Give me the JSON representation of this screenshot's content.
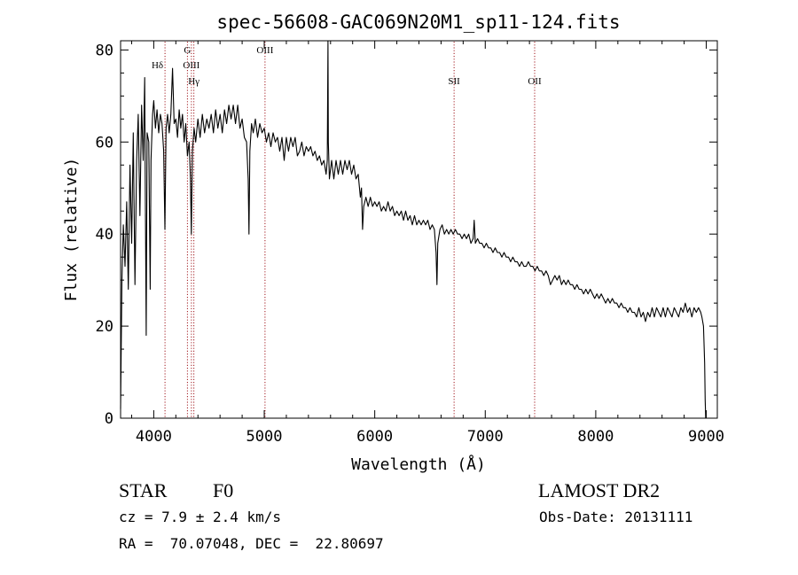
{
  "chart_data": {
    "type": "line",
    "title": "spec-56608-GAC069N20M1_sp11-124.fits",
    "xlabel": "Wavelength (Å)",
    "ylabel": "Flux (relative)",
    "xlim": [
      3700,
      9100
    ],
    "ylim": [
      0,
      82
    ],
    "x_ticks": [
      4000,
      5000,
      6000,
      7000,
      8000,
      9000
    ],
    "y_ticks": [
      0,
      20,
      40,
      60,
      80
    ],
    "grid": false,
    "series": [
      {
        "name": "spectrum",
        "color": "#000000",
        "points": [
          [
            3700,
            2
          ],
          [
            3712,
            30
          ],
          [
            3725,
            42
          ],
          [
            3740,
            33
          ],
          [
            3755,
            47
          ],
          [
            3770,
            28
          ],
          [
            3785,
            55
          ],
          [
            3800,
            38
          ],
          [
            3815,
            62
          ],
          [
            3830,
            29
          ],
          [
            3845,
            56
          ],
          [
            3860,
            66
          ],
          [
            3875,
            44
          ],
          [
            3890,
            68
          ],
          [
            3905,
            56
          ],
          [
            3918,
            74
          ],
          [
            3925,
            46
          ],
          [
            3932,
            18
          ],
          [
            3940,
            62
          ],
          [
            3955,
            60
          ],
          [
            3968,
            28
          ],
          [
            3975,
            56
          ],
          [
            3990,
            66
          ],
          [
            4000,
            69
          ],
          [
            4015,
            63
          ],
          [
            4030,
            67
          ],
          [
            4045,
            62
          ],
          [
            4060,
            66
          ],
          [
            4075,
            64
          ],
          [
            4090,
            58
          ],
          [
            4101,
            41
          ],
          [
            4112,
            63
          ],
          [
            4125,
            66
          ],
          [
            4140,
            62
          ],
          [
            4155,
            66
          ],
          [
            4170,
            76
          ],
          [
            4185,
            64
          ],
          [
            4200,
            65
          ],
          [
            4215,
            61
          ],
          [
            4230,
            67
          ],
          [
            4245,
            63
          ],
          [
            4260,
            66
          ],
          [
            4275,
            60
          ],
          [
            4290,
            64
          ],
          [
            4305,
            57
          ],
          [
            4320,
            60
          ],
          [
            4332,
            52
          ],
          [
            4340,
            40
          ],
          [
            4350,
            58
          ],
          [
            4365,
            63
          ],
          [
            4380,
            60
          ],
          [
            4400,
            65
          ],
          [
            4420,
            61
          ],
          [
            4440,
            66
          ],
          [
            4460,
            62
          ],
          [
            4480,
            65
          ],
          [
            4500,
            63
          ],
          [
            4520,
            66
          ],
          [
            4540,
            62
          ],
          [
            4560,
            67
          ],
          [
            4580,
            63
          ],
          [
            4600,
            66
          ],
          [
            4620,
            62
          ],
          [
            4640,
            67
          ],
          [
            4660,
            64
          ],
          [
            4680,
            68
          ],
          [
            4700,
            65
          ],
          [
            4720,
            68
          ],
          [
            4740,
            64
          ],
          [
            4760,
            68
          ],
          [
            4780,
            63
          ],
          [
            4800,
            65
          ],
          [
            4820,
            61
          ],
          [
            4840,
            60
          ],
          [
            4855,
            52
          ],
          [
            4862,
            40
          ],
          [
            4870,
            58
          ],
          [
            4885,
            64
          ],
          [
            4900,
            62
          ],
          [
            4920,
            65
          ],
          [
            4940,
            61
          ],
          [
            4960,
            64
          ],
          [
            4980,
            62
          ],
          [
            5000,
            63
          ],
          [
            5020,
            60
          ],
          [
            5040,
            62
          ],
          [
            5060,
            59
          ],
          [
            5080,
            62
          ],
          [
            5100,
            60
          ],
          [
            5120,
            61
          ],
          [
            5140,
            58
          ],
          [
            5160,
            61
          ],
          [
            5180,
            56
          ],
          [
            5200,
            61
          ],
          [
            5220,
            58
          ],
          [
            5240,
            61
          ],
          [
            5260,
            59
          ],
          [
            5280,
            61
          ],
          [
            5300,
            57
          ],
          [
            5320,
            58
          ],
          [
            5340,
            60
          ],
          [
            5360,
            57
          ],
          [
            5380,
            59
          ],
          [
            5400,
            58
          ],
          [
            5420,
            59
          ],
          [
            5440,
            57
          ],
          [
            5460,
            58
          ],
          [
            5480,
            56
          ],
          [
            5500,
            57
          ],
          [
            5520,
            55
          ],
          [
            5540,
            56
          ],
          [
            5560,
            53
          ],
          [
            5570,
            56
          ],
          [
            5577,
            82
          ],
          [
            5580,
            60
          ],
          [
            5590,
            52
          ],
          [
            5610,
            56
          ],
          [
            5630,
            52
          ],
          [
            5650,
            56
          ],
          [
            5670,
            53
          ],
          [
            5690,
            56
          ],
          [
            5710,
            53
          ],
          [
            5730,
            56
          ],
          [
            5750,
            54
          ],
          [
            5770,
            56
          ],
          [
            5790,
            53
          ],
          [
            5810,
            55
          ],
          [
            5830,
            52
          ],
          [
            5850,
            53
          ],
          [
            5870,
            48
          ],
          [
            5880,
            50
          ],
          [
            5890,
            41
          ],
          [
            5900,
            46
          ],
          [
            5920,
            48
          ],
          [
            5940,
            46
          ],
          [
            5960,
            48
          ],
          [
            5980,
            46
          ],
          [
            6000,
            47
          ],
          [
            6020,
            46
          ],
          [
            6040,
            47
          ],
          [
            6060,
            45
          ],
          [
            6080,
            46
          ],
          [
            6100,
            45
          ],
          [
            6120,
            47
          ],
          [
            6140,
            45
          ],
          [
            6160,
            46
          ],
          [
            6180,
            44
          ],
          [
            6200,
            45
          ],
          [
            6220,
            44
          ],
          [
            6240,
            45
          ],
          [
            6260,
            43
          ],
          [
            6280,
            45
          ],
          [
            6300,
            43
          ],
          [
            6320,
            44
          ],
          [
            6340,
            42
          ],
          [
            6360,
            44
          ],
          [
            6380,
            42
          ],
          [
            6400,
            43
          ],
          [
            6420,
            42
          ],
          [
            6440,
            43
          ],
          [
            6460,
            42
          ],
          [
            6480,
            43
          ],
          [
            6500,
            41
          ],
          [
            6520,
            42
          ],
          [
            6540,
            41
          ],
          [
            6555,
            36
          ],
          [
            6563,
            29
          ],
          [
            6570,
            38
          ],
          [
            6590,
            41
          ],
          [
            6610,
            42
          ],
          [
            6630,
            40
          ],
          [
            6650,
            41
          ],
          [
            6670,
            40
          ],
          [
            6690,
            41
          ],
          [
            6710,
            40
          ],
          [
            6730,
            41
          ],
          [
            6750,
            40
          ],
          [
            6770,
            40
          ],
          [
            6790,
            39
          ],
          [
            6810,
            40
          ],
          [
            6830,
            39
          ],
          [
            6850,
            40
          ],
          [
            6870,
            38
          ],
          [
            6890,
            39
          ],
          [
            6900,
            43
          ],
          [
            6910,
            38
          ],
          [
            6930,
            39
          ],
          [
            6950,
            38
          ],
          [
            6970,
            38
          ],
          [
            6990,
            37
          ],
          [
            7010,
            38
          ],
          [
            7030,
            37
          ],
          [
            7050,
            37
          ],
          [
            7070,
            36
          ],
          [
            7090,
            37
          ],
          [
            7110,
            36
          ],
          [
            7130,
            36
          ],
          [
            7150,
            35
          ],
          [
            7170,
            36
          ],
          [
            7190,
            35
          ],
          [
            7210,
            35
          ],
          [
            7230,
            34
          ],
          [
            7250,
            35
          ],
          [
            7270,
            34
          ],
          [
            7290,
            34
          ],
          [
            7310,
            33
          ],
          [
            7330,
            34
          ],
          [
            7350,
            33
          ],
          [
            7370,
            33
          ],
          [
            7390,
            34
          ],
          [
            7410,
            33
          ],
          [
            7430,
            33
          ],
          [
            7450,
            32
          ],
          [
            7470,
            33
          ],
          [
            7490,
            32
          ],
          [
            7510,
            32
          ],
          [
            7530,
            31
          ],
          [
            7550,
            32
          ],
          [
            7570,
            31
          ],
          [
            7590,
            29
          ],
          [
            7610,
            30
          ],
          [
            7630,
            31
          ],
          [
            7650,
            30
          ],
          [
            7670,
            31
          ],
          [
            7690,
            29
          ],
          [
            7710,
            30
          ],
          [
            7730,
            29
          ],
          [
            7750,
            30
          ],
          [
            7770,
            29
          ],
          [
            7790,
            29
          ],
          [
            7810,
            28
          ],
          [
            7830,
            29
          ],
          [
            7850,
            28
          ],
          [
            7870,
            28
          ],
          [
            7890,
            27
          ],
          [
            7910,
            28
          ],
          [
            7930,
            27
          ],
          [
            7950,
            28
          ],
          [
            7970,
            27
          ],
          [
            7990,
            26
          ],
          [
            8010,
            27
          ],
          [
            8030,
            26
          ],
          [
            8050,
            27
          ],
          [
            8070,
            26
          ],
          [
            8090,
            25
          ],
          [
            8110,
            26
          ],
          [
            8130,
            25
          ],
          [
            8150,
            26
          ],
          [
            8170,
            25
          ],
          [
            8190,
            25
          ],
          [
            8210,
            24
          ],
          [
            8230,
            25
          ],
          [
            8250,
            24
          ],
          [
            8270,
            24
          ],
          [
            8290,
            23
          ],
          [
            8310,
            24
          ],
          [
            8330,
            23
          ],
          [
            8350,
            23
          ],
          [
            8370,
            22
          ],
          [
            8390,
            24
          ],
          [
            8410,
            22
          ],
          [
            8430,
            23
          ],
          [
            8450,
            21
          ],
          [
            8470,
            23
          ],
          [
            8490,
            22
          ],
          [
            8510,
            24
          ],
          [
            8530,
            22
          ],
          [
            8550,
            24
          ],
          [
            8570,
            23
          ],
          [
            8590,
            22
          ],
          [
            8610,
            24
          ],
          [
            8630,
            22
          ],
          [
            8650,
            24
          ],
          [
            8670,
            23
          ],
          [
            8690,
            22
          ],
          [
            8710,
            24
          ],
          [
            8730,
            23
          ],
          [
            8750,
            22
          ],
          [
            8770,
            24
          ],
          [
            8790,
            23
          ],
          [
            8810,
            25
          ],
          [
            8830,
            23
          ],
          [
            8850,
            24
          ],
          [
            8870,
            22
          ],
          [
            8890,
            24
          ],
          [
            8910,
            23
          ],
          [
            8930,
            24
          ],
          [
            8950,
            23
          ],
          [
            8960,
            22
          ],
          [
            8975,
            20
          ],
          [
            8985,
            12
          ],
          [
            8990,
            4
          ],
          [
            8995,
            0
          ]
        ]
      }
    ],
    "line_markers": [
      {
        "label": "Hδ",
        "x": 4102,
        "label_row": 2
      },
      {
        "label": "G",
        "x": 4305,
        "label_row": 1
      },
      {
        "label": "OIII",
        "x": 4341,
        "label_row": 2
      },
      {
        "label": "Hγ",
        "x": 4363,
        "label_row": 3
      },
      {
        "label": "OIII",
        "x": 5007,
        "label_row": 1
      },
      {
        "label": "SII",
        "x": 6718,
        "label_row": 3
      },
      {
        "label": "OII",
        "x": 7447,
        "label_row": 3
      }
    ],
    "marker_color": "#a0161c"
  },
  "info": {
    "object_class": "STAR",
    "subclass": "F0",
    "survey": "LAMOST DR2",
    "cz_line": "cz = 7.9 ± 2.4 km/s",
    "obs_date_line": "Obs-Date: 20131111",
    "radec_line": "RA =  70.07048, DEC =  22.80697"
  }
}
